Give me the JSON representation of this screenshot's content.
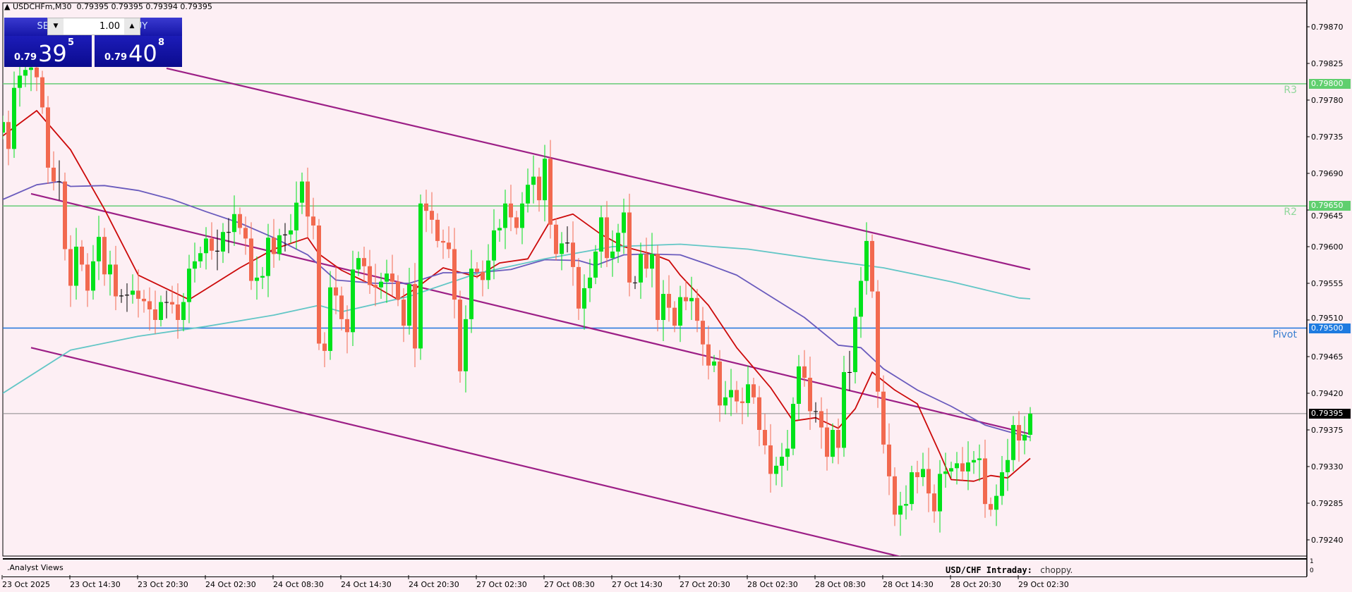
{
  "window": {
    "title": "USDCHFm,M30",
    "ohlc_readout": "0.79395 0.79395 0.79394 0.79395",
    "collapse_icon": "triangle-up-icon"
  },
  "trade_panel": {
    "sell_label": "SELL",
    "buy_label": "BUY",
    "lot_value": "1.00",
    "sell_price": {
      "prefix": "0.79",
      "big": "39",
      "sup": "5"
    },
    "buy_price": {
      "prefix": "0.79",
      "big": "40",
      "sup": "8"
    },
    "down_icon": "caret-down-icon",
    "up_icon": "caret-up-icon"
  },
  "subwindow": {
    "label": ".Analyst Views",
    "headline": "USD/CHF Intraday:",
    "comment": "choppy.",
    "scale_top": "1",
    "scale_bottom": "0"
  },
  "colors": {
    "background": "#fdeff4",
    "bull": "#00e21b",
    "bear": "#f2694f",
    "ma_fast": "#cc0a0a",
    "ma_mid": "#6a5bbd",
    "ma_slow": "#62c6c6",
    "channel": "#9c1f86",
    "resistance": "#66cc77",
    "pivot": "#1e74dc",
    "bid_line": "#888888"
  },
  "chart_data": {
    "type": "candlestick",
    "symbol": "USDCHFm",
    "timeframe": "M30",
    "y_ticks": [
      "0.79870",
      "0.79825",
      "0.79780",
      "0.79735",
      "0.79690",
      "0.79645",
      "0.79600",
      "0.79555",
      "0.79510",
      "0.79465",
      "0.79420",
      "0.79375",
      "0.79330",
      "0.79285",
      "0.79240"
    ],
    "ylim": [
      0.7923,
      0.799
    ],
    "x_ticks": [
      "23 Oct 2025",
      "23 Oct 14:30",
      "23 Oct 20:30",
      "24 Oct 02:30",
      "24 Oct 08:30",
      "24 Oct 14:30",
      "24 Oct 20:30",
      "27 Oct 02:30",
      "27 Oct 08:30",
      "27 Oct 14:30",
      "27 Oct 20:30",
      "28 Oct 02:30",
      "28 Oct 08:30",
      "28 Oct 14:30",
      "28 Oct 20:30",
      "29 Oct 02:30"
    ],
    "first_open": 0.7974,
    "closes": [
      0.79753,
      0.7972,
      0.79795,
      0.7981,
      0.79817,
      0.7982,
      0.79808,
      0.79771,
      0.79697,
      0.7968,
      0.7968,
      0.79597,
      0.79552,
      0.796,
      0.79578,
      0.79546,
      0.79582,
      0.79612,
      0.79566,
      0.79578,
      0.79539,
      0.7954,
      0.79541,
      0.79546,
      0.79536,
      0.79533,
      0.79523,
      0.7951,
      0.79532,
      0.79532,
      0.79529,
      0.7951,
      0.79532,
      0.79573,
      0.79582,
      0.79592,
      0.7961,
      0.79595,
      0.79594,
      0.79618,
      0.79618,
      0.7964,
      0.79623,
      0.7961,
      0.79558,
      0.79562,
      0.79564,
      0.79611,
      0.79591,
      0.79614,
      0.79615,
      0.7962,
      0.79654,
      0.7968,
      0.79637,
      0.79626,
      0.79481,
      0.79472,
      0.7955,
      0.7954,
      0.79511,
      0.79495,
      0.79572,
      0.79586,
      0.79576,
      0.79553,
      0.7955,
      0.79557,
      0.79567,
      0.79557,
      0.79535,
      0.79503,
      0.79554,
      0.79475,
      0.79653,
      0.79644,
      0.79633,
      0.79607,
      0.79605,
      0.79597,
      0.79535,
      0.79447,
      0.79511,
      0.79573,
      0.79569,
      0.79559,
      0.79583,
      0.7962,
      0.79623,
      0.79653,
      0.79636,
      0.79623,
      0.79653,
      0.79676,
      0.79686,
      0.79657,
      0.79708,
      0.79627,
      0.79591,
      0.79604,
      0.79605,
      0.79575,
      0.79524,
      0.79549,
      0.79562,
      0.79594,
      0.79636,
      0.79586,
      0.79594,
      0.79617,
      0.79642,
      0.79556,
      0.79556,
      0.79591,
      0.79573,
      0.79591,
      0.7951,
      0.79542,
      0.79525,
      0.79503,
      0.79538,
      0.79533,
      0.79537,
      0.79509,
      0.7948,
      0.79454,
      0.79459,
      0.79405,
      0.79415,
      0.79424,
      0.7941,
      0.79408,
      0.79431,
      0.79415,
      0.79375,
      0.79356,
      0.79321,
      0.79331,
      0.79342,
      0.79352,
      0.79407,
      0.79453,
      0.79439,
      0.79398,
      0.79398,
      0.79378,
      0.79342,
      0.79375,
      0.79353,
      0.79446,
      0.79446,
      0.79514,
      0.79558,
      0.79607,
      0.79545,
      0.79422,
      0.79357,
      0.79318,
      0.79271,
      0.79282,
      0.79284,
      0.79323,
      0.79317,
      0.79327,
      0.79297,
      0.79275,
      0.79321,
      0.79324,
      0.79328,
      0.79334,
      0.79324,
      0.79335,
      0.79338,
      0.7934,
      0.79284,
      0.79277,
      0.79294,
      0.79323,
      0.79338,
      0.79381,
      0.79362,
      0.79369,
      0.79395
    ],
    "moving_averages": [
      {
        "color_key": "ma_fast",
        "points": [
          [
            0,
            0.79736
          ],
          [
            6,
            0.79767
          ],
          [
            12,
            0.79719
          ],
          [
            18,
            0.79646
          ],
          [
            24,
            0.79565
          ],
          [
            30,
            0.79545
          ],
          [
            33,
            0.79535
          ],
          [
            36,
            0.79548
          ],
          [
            42,
            0.79574
          ],
          [
            48,
            0.79597
          ],
          [
            54,
            0.79611
          ],
          [
            56,
            0.79591
          ],
          [
            60,
            0.79571
          ],
          [
            66,
            0.79551
          ],
          [
            70,
            0.79535
          ],
          [
            73,
            0.79548
          ],
          [
            78,
            0.79574
          ],
          [
            84,
            0.79563
          ],
          [
            88,
            0.7958
          ],
          [
            93,
            0.79585
          ],
          [
            97,
            0.79632
          ],
          [
            101,
            0.7964
          ],
          [
            106,
            0.79615
          ],
          [
            110,
            0.796
          ],
          [
            115,
            0.79591
          ],
          [
            118,
            0.79583
          ],
          [
            120,
            0.79565
          ],
          [
            125,
            0.79528
          ],
          [
            130,
            0.79476
          ],
          [
            136,
            0.79427
          ],
          [
            140,
            0.79386
          ],
          [
            144,
            0.7939
          ],
          [
            148,
            0.79377
          ],
          [
            151,
            0.79401
          ],
          [
            154,
            0.79446
          ],
          [
            158,
            0.79424
          ],
          [
            162,
            0.79407
          ],
          [
            166,
            0.79346
          ],
          [
            168,
            0.79314
          ],
          [
            172,
            0.79312
          ],
          [
            175,
            0.79319
          ],
          [
            178,
            0.79316
          ],
          [
            182,
            0.7934
          ]
        ]
      },
      {
        "color_key": "ma_mid",
        "points": [
          [
            0,
            0.79658
          ],
          [
            6,
            0.79676
          ],
          [
            10,
            0.7968
          ],
          [
            12,
            0.79674
          ],
          [
            18,
            0.79675
          ],
          [
            24,
            0.79669
          ],
          [
            30,
            0.79658
          ],
          [
            36,
            0.79643
          ],
          [
            42,
            0.79629
          ],
          [
            48,
            0.79611
          ],
          [
            54,
            0.7959
          ],
          [
            59,
            0.79559
          ],
          [
            66,
            0.79555
          ],
          [
            72,
            0.79555
          ],
          [
            78,
            0.79568
          ],
          [
            84,
            0.79568
          ],
          [
            90,
            0.79572
          ],
          [
            96,
            0.79584
          ],
          [
            102,
            0.79583
          ],
          [
            105,
            0.79577
          ],
          [
            110,
            0.7959
          ],
          [
            114,
            0.79591
          ],
          [
            120,
            0.7959
          ],
          [
            125,
            0.79578
          ],
          [
            130,
            0.79565
          ],
          [
            136,
            0.79539
          ],
          [
            142,
            0.79513
          ],
          [
            148,
            0.79479
          ],
          [
            152,
            0.79476
          ],
          [
            156,
            0.7945
          ],
          [
            162,
            0.79424
          ],
          [
            168,
            0.79404
          ],
          [
            174,
            0.79381
          ],
          [
            178,
            0.79373
          ],
          [
            182,
            0.79366
          ]
        ]
      },
      {
        "color_key": "ma_slow",
        "points": [
          [
            0,
            0.7942
          ],
          [
            12,
            0.79473
          ],
          [
            24,
            0.7949
          ],
          [
            36,
            0.79502
          ],
          [
            48,
            0.79516
          ],
          [
            56,
            0.79528
          ],
          [
            60,
            0.7952
          ],
          [
            72,
            0.79539
          ],
          [
            84,
            0.79567
          ],
          [
            96,
            0.79585
          ],
          [
            108,
            0.796
          ],
          [
            120,
            0.79603
          ],
          [
            132,
            0.79597
          ],
          [
            144,
            0.79585
          ],
          [
            156,
            0.79574
          ],
          [
            168,
            0.79557
          ],
          [
            180,
            0.79537
          ],
          [
            182,
            0.79536
          ]
        ]
      }
    ],
    "channel_lines": [
      {
        "from": [
          29,
          0.79819
        ],
        "to": [
          182,
          0.79572
        ]
      },
      {
        "from": [
          5,
          0.79665
        ],
        "to": [
          182,
          0.7937
        ]
      },
      {
        "from": [
          5,
          0.79476
        ],
        "to": [
          182,
          0.79181
        ]
      }
    ],
    "levels": [
      {
        "name": "R3",
        "price": 0.798,
        "label": "0.79800",
        "color_key": "resistance"
      },
      {
        "name": "R2",
        "price": 0.7965,
        "label": "0.79650",
        "color_key": "resistance"
      },
      {
        "name": "Pivot",
        "price": 0.795,
        "label": "0.79500",
        "color_key": "pivot"
      }
    ],
    "bid": {
      "price": 0.79395,
      "label": "0.79395"
    }
  }
}
